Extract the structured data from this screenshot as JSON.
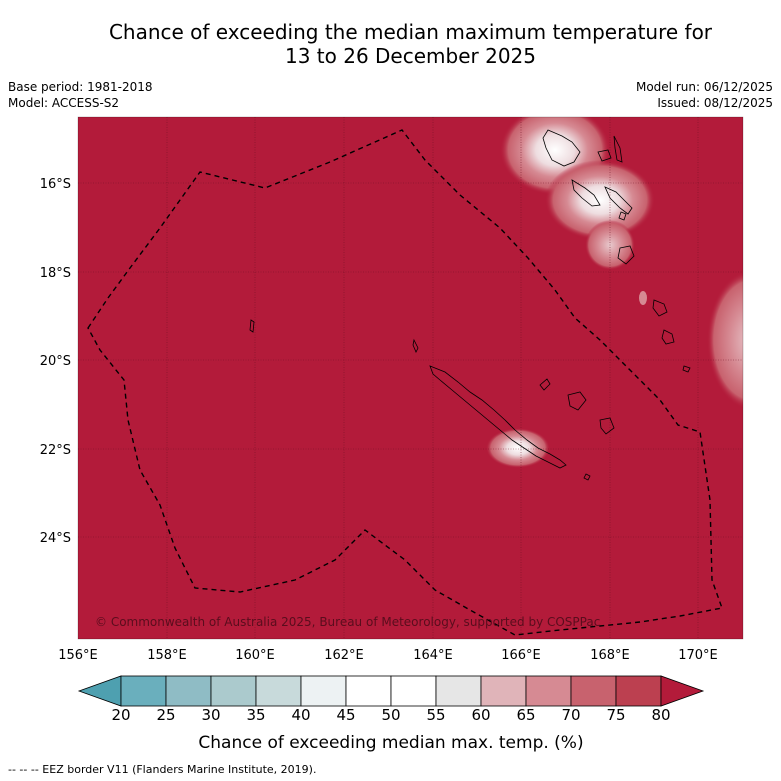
{
  "header": {
    "title_line1": "Chance of exceeding the median maximum temperature for",
    "title_line2": "13 to 26 December 2025",
    "base_period": "Base period: 1981-2018",
    "model": "Model: ACCESS-S2",
    "model_run": "Model run: 06/12/2025",
    "issued": "Issued: 08/12/2025"
  },
  "map": {
    "lat_labels": [
      "16°S",
      "18°S",
      "20°S",
      "22°S",
      "24°S"
    ],
    "lon_labels": [
      "156°E",
      "158°E",
      "160°E",
      "162°E",
      "164°E",
      "166°E",
      "168°E",
      "170°E"
    ],
    "copyright": "© Commonwealth of Australia 2025, Bureau of Meteorology, supported by COSPPac",
    "fill_color": "#b31b3a",
    "land_color": "#b31b3a"
  },
  "colorbar": {
    "ticks": [
      "20",
      "25",
      "30",
      "35",
      "40",
      "45",
      "50",
      "55",
      "60",
      "65",
      "70",
      "75",
      "80"
    ],
    "colors": [
      "#4ea0b0",
      "#6aafbd",
      "#8fbcc5",
      "#abcacd",
      "#c8dadb",
      "#edf2f3",
      "#ffffff",
      "#ffffff",
      "#e6e6e6",
      "#e0b4b9",
      "#d68a93",
      "#c8626e",
      "#bc4050",
      "#b31b3a"
    ],
    "label": "Chance of exceeding median max. temp. (%)"
  },
  "footnote": "--  --  -- EEZ border V11 (Flanders Marine Institute, 2019)."
}
